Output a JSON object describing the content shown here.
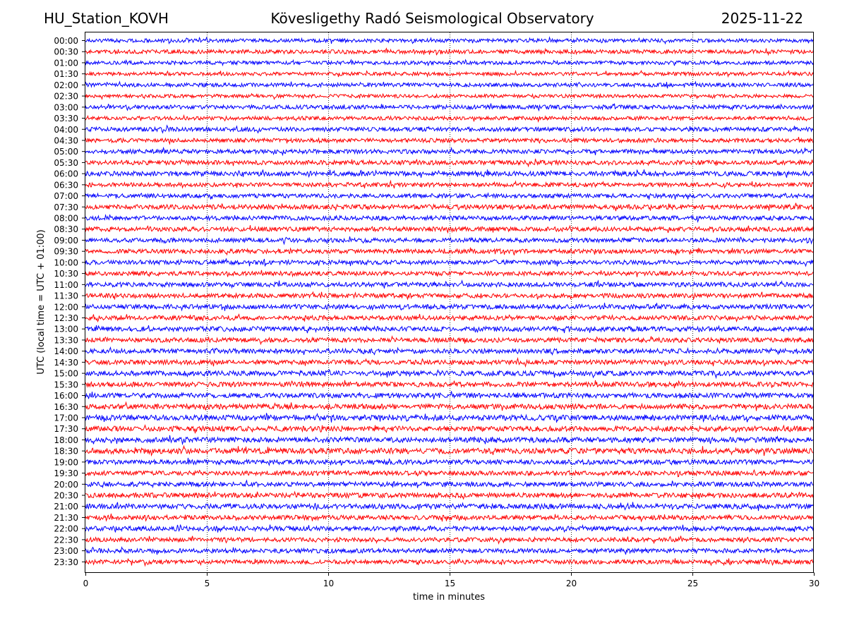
{
  "header": {
    "station": "HU_Station_KOVH",
    "observatory": "Kövesligethy Radó Seismological Observatory",
    "date": "2025-11-22"
  },
  "chart_data": {
    "type": "line",
    "title": "Kövesligethy Radó Seismological Observatory",
    "xlabel": "time in minutes",
    "ylabel": "UTC (local time = UTC + 01:00)",
    "xlim": [
      0,
      30
    ],
    "xticks": [
      0,
      5,
      10,
      15,
      20,
      25,
      30
    ],
    "vertical_gridlines": [
      5,
      10,
      15,
      20,
      25
    ],
    "grid": "x-dotted",
    "trace_colors": [
      "#0000ff",
      "#ff0000"
    ],
    "series": [
      {
        "name": "00:00",
        "color": "#0000ff",
        "amplitude": 2.5
      },
      {
        "name": "00:30",
        "color": "#ff0000",
        "amplitude": 2.8
      },
      {
        "name": "01:00",
        "color": "#0000ff",
        "amplitude": 2.6
      },
      {
        "name": "01:30",
        "color": "#ff0000",
        "amplitude": 2.5
      },
      {
        "name": "02:00",
        "color": "#0000ff",
        "amplitude": 2.7
      },
      {
        "name": "02:30",
        "color": "#ff0000",
        "amplitude": 2.4
      },
      {
        "name": "03:00",
        "color": "#0000ff",
        "amplitude": 2.9
      },
      {
        "name": "03:30",
        "color": "#ff0000",
        "amplitude": 2.6
      },
      {
        "name": "04:00",
        "color": "#0000ff",
        "amplitude": 3.0
      },
      {
        "name": "04:30",
        "color": "#ff0000",
        "amplitude": 2.9
      },
      {
        "name": "05:00",
        "color": "#0000ff",
        "amplitude": 3.0
      },
      {
        "name": "05:30",
        "color": "#ff0000",
        "amplitude": 3.1
      },
      {
        "name": "06:00",
        "color": "#0000ff",
        "amplitude": 3.3
      },
      {
        "name": "06:30",
        "color": "#ff0000",
        "amplitude": 3.0
      },
      {
        "name": "07:00",
        "color": "#0000ff",
        "amplitude": 2.9
      },
      {
        "name": "07:30",
        "color": "#ff0000",
        "amplitude": 3.3
      },
      {
        "name": "08:00",
        "color": "#0000ff",
        "amplitude": 3.1
      },
      {
        "name": "08:30",
        "color": "#ff0000",
        "amplitude": 3.2
      },
      {
        "name": "09:00",
        "color": "#0000ff",
        "amplitude": 3.0
      },
      {
        "name": "09:30",
        "color": "#ff0000",
        "amplitude": 3.1
      },
      {
        "name": "10:00",
        "color": "#0000ff",
        "amplitude": 3.1
      },
      {
        "name": "10:30",
        "color": "#ff0000",
        "amplitude": 3.0
      },
      {
        "name": "11:00",
        "color": "#0000ff",
        "amplitude": 3.2
      },
      {
        "name": "11:30",
        "color": "#ff0000",
        "amplitude": 3.1
      },
      {
        "name": "12:00",
        "color": "#0000ff",
        "amplitude": 3.3
      },
      {
        "name": "12:30",
        "color": "#ff0000",
        "amplitude": 3.2
      },
      {
        "name": "13:00",
        "color": "#0000ff",
        "amplitude": 3.4
      },
      {
        "name": "13:30",
        "color": "#ff0000",
        "amplitude": 3.2
      },
      {
        "name": "14:00",
        "color": "#0000ff",
        "amplitude": 3.3
      },
      {
        "name": "14:30",
        "color": "#ff0000",
        "amplitude": 3.3
      },
      {
        "name": "15:00",
        "color": "#0000ff",
        "amplitude": 3.5
      },
      {
        "name": "15:30",
        "color": "#ff0000",
        "amplitude": 3.4
      },
      {
        "name": "16:00",
        "color": "#0000ff",
        "amplitude": 3.4
      },
      {
        "name": "16:30",
        "color": "#ff0000",
        "amplitude": 3.6
      },
      {
        "name": "17:00",
        "color": "#0000ff",
        "amplitude": 3.8
      },
      {
        "name": "17:30",
        "color": "#ff0000",
        "amplitude": 3.6
      },
      {
        "name": "18:00",
        "color": "#0000ff",
        "amplitude": 3.7
      },
      {
        "name": "18:30",
        "color": "#ff0000",
        "amplitude": 3.9
      },
      {
        "name": "19:00",
        "color": "#0000ff",
        "amplitude": 3.3
      },
      {
        "name": "19:30",
        "color": "#ff0000",
        "amplitude": 3.2
      },
      {
        "name": "20:00",
        "color": "#0000ff",
        "amplitude": 3.3
      },
      {
        "name": "20:30",
        "color": "#ff0000",
        "amplitude": 3.4
      },
      {
        "name": "21:00",
        "color": "#0000ff",
        "amplitude": 3.5
      },
      {
        "name": "21:30",
        "color": "#ff0000",
        "amplitude": 3.2
      },
      {
        "name": "22:00",
        "color": "#0000ff",
        "amplitude": 3.3
      },
      {
        "name": "22:30",
        "color": "#ff0000",
        "amplitude": 3.0
      },
      {
        "name": "23:00",
        "color": "#0000ff",
        "amplitude": 3.2
      },
      {
        "name": "23:30",
        "color": "#ff0000",
        "amplitude": 3.0
      }
    ]
  }
}
